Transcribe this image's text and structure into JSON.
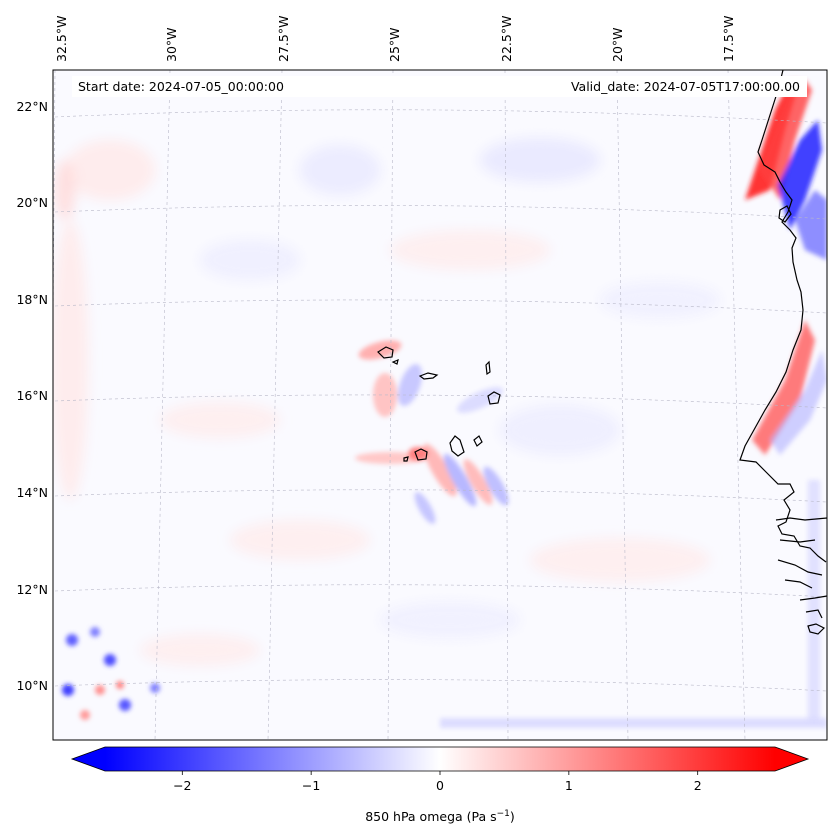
{
  "map": {
    "header": {
      "start_date": "Start date: 2024-07-05_00:00:00",
      "valid_date": "Valid_date: 2024-07-05T17:00:00.00"
    },
    "lon_labels": [
      "32.5°W",
      "30°W",
      "27.5°W",
      "25°W",
      "22.5°W",
      "20°W",
      "17.5°W"
    ],
    "lat_labels": [
      "22°N",
      "20°N",
      "18°N",
      "16°N",
      "14°N",
      "12°N",
      "10°N"
    ],
    "field": "850 hPa omega",
    "colormap": "bwr",
    "colors": {
      "negative": "#0000ff",
      "neutral": "#ffffff",
      "positive": "#ff0000",
      "coast": "#000000",
      "grid": "#b0b0b0"
    }
  },
  "colorbar": {
    "min": -2.6,
    "max": 2.6,
    "ticks": [
      {
        "value": -2,
        "label": "−2"
      },
      {
        "value": -1,
        "label": "−1"
      },
      {
        "value": 0,
        "label": "0"
      },
      {
        "value": 1,
        "label": "1"
      },
      {
        "value": 2,
        "label": "2"
      }
    ],
    "label_prefix": "850 hPa omega (Pa s",
    "label_exp": "−1",
    "label_suffix": ")"
  }
}
